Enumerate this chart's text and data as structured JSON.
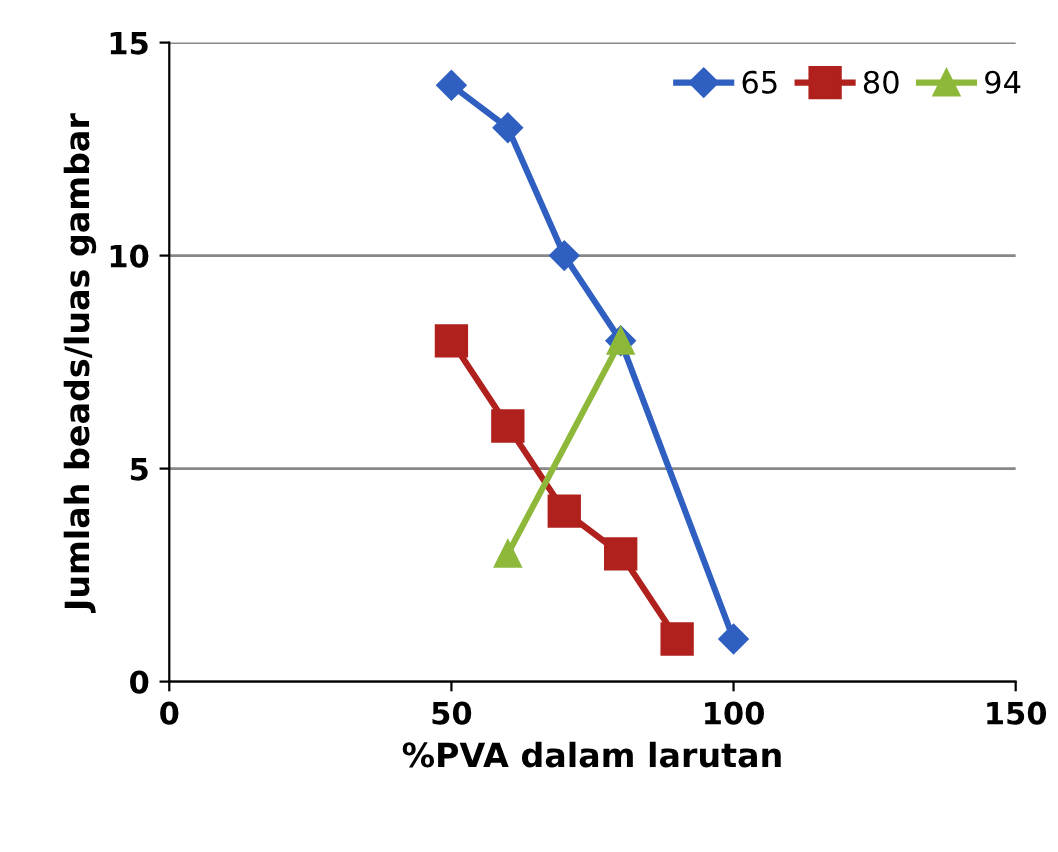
{
  "chart_data": {
    "type": "line",
    "xlabel": "%PVA dalam larutan",
    "ylabel": "Jumlah beads/luas gambar",
    "xlim": [
      0,
      150
    ],
    "xticks": [
      0,
      50,
      100,
      150
    ],
    "ylim": [
      0,
      15
    ],
    "yticks": [
      0,
      5,
      10,
      15
    ],
    "grid": "y",
    "legend": "top right",
    "line_style": "solid",
    "series": [
      {
        "name": "65",
        "color": "#2f5fc0",
        "marker": "diamond",
        "x": [
          50,
          60,
          70,
          80,
          100
        ],
        "values": [
          14,
          13,
          10,
          8,
          1
        ]
      },
      {
        "name": "80",
        "color": "#b0201c",
        "marker": "square",
        "x": [
          50,
          60,
          70,
          80,
          90
        ],
        "values": [
          8,
          6,
          4,
          3,
          1
        ]
      },
      {
        "name": "94",
        "color": "#8db83a",
        "marker": "triangle",
        "x": [
          60,
          80
        ],
        "values": [
          3,
          8
        ]
      }
    ]
  }
}
